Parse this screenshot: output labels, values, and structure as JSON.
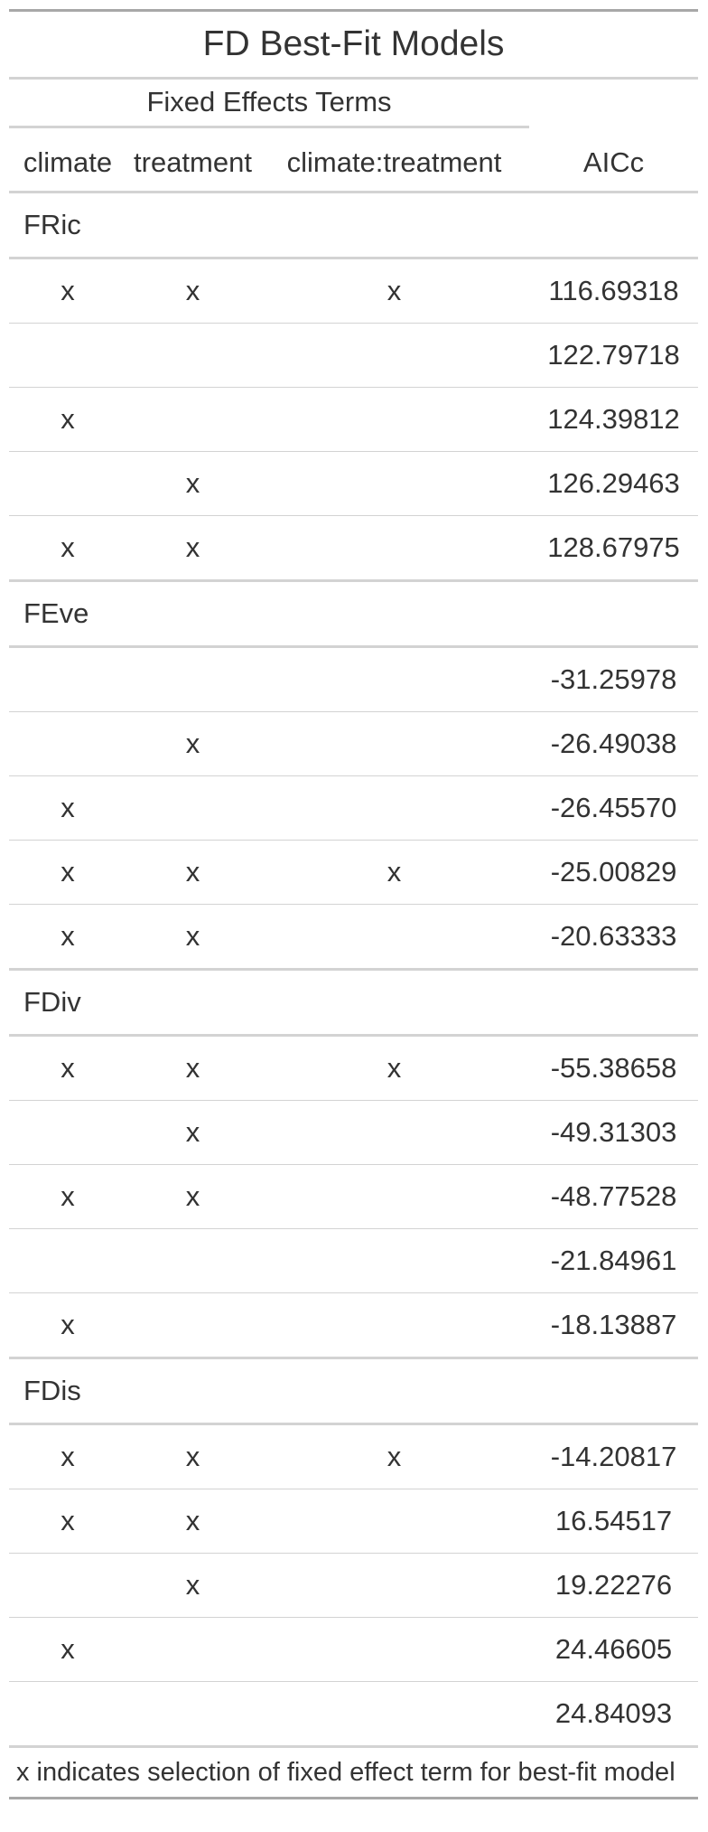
{
  "title": "FD Best-Fit Models",
  "spanner": "Fixed Effects Terms",
  "columns": [
    "climate",
    "treatment",
    "climate:treatment",
    "AICc"
  ],
  "groups": [
    {
      "name": "FRic",
      "rows": [
        {
          "climate": "x",
          "treatment": "x",
          "interaction": "x",
          "aicc": "116.69318"
        },
        {
          "climate": "",
          "treatment": "",
          "interaction": "",
          "aicc": "122.79718"
        },
        {
          "climate": "x",
          "treatment": "",
          "interaction": "",
          "aicc": "124.39812"
        },
        {
          "climate": "",
          "treatment": "x",
          "interaction": "",
          "aicc": "126.29463"
        },
        {
          "climate": "x",
          "treatment": "x",
          "interaction": "",
          "aicc": "128.67975"
        }
      ]
    },
    {
      "name": "FEve",
      "rows": [
        {
          "climate": "",
          "treatment": "",
          "interaction": "",
          "aicc": "-31.25978"
        },
        {
          "climate": "",
          "treatment": "x",
          "interaction": "",
          "aicc": "-26.49038"
        },
        {
          "climate": "x",
          "treatment": "",
          "interaction": "",
          "aicc": "-26.45570"
        },
        {
          "climate": "x",
          "treatment": "x",
          "interaction": "x",
          "aicc": "-25.00829"
        },
        {
          "climate": "x",
          "treatment": "x",
          "interaction": "",
          "aicc": "-20.63333"
        }
      ]
    },
    {
      "name": "FDiv",
      "rows": [
        {
          "climate": "x",
          "treatment": "x",
          "interaction": "x",
          "aicc": "-55.38658"
        },
        {
          "climate": "",
          "treatment": "x",
          "interaction": "",
          "aicc": "-49.31303"
        },
        {
          "climate": "x",
          "treatment": "x",
          "interaction": "",
          "aicc": "-48.77528"
        },
        {
          "climate": "",
          "treatment": "",
          "interaction": "",
          "aicc": "-21.84961"
        },
        {
          "climate": "x",
          "treatment": "",
          "interaction": "",
          "aicc": "-18.13887"
        }
      ]
    },
    {
      "name": "FDis",
      "rows": [
        {
          "climate": "x",
          "treatment": "x",
          "interaction": "x",
          "aicc": "-14.20817"
        },
        {
          "climate": "x",
          "treatment": "x",
          "interaction": "",
          "aicc": "16.54517"
        },
        {
          "climate": "",
          "treatment": "x",
          "interaction": "",
          "aicc": "19.22276"
        },
        {
          "climate": "x",
          "treatment": "",
          "interaction": "",
          "aicc": "24.46605"
        },
        {
          "climate": "",
          "treatment": "",
          "interaction": "",
          "aicc": "24.84093"
        }
      ]
    }
  ],
  "footnote": "x indicates selection of fixed effect term for best-fit model"
}
